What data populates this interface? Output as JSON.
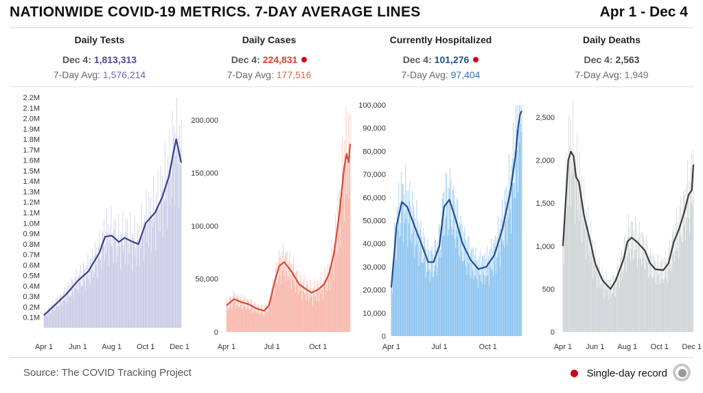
{
  "header": {
    "title": "NATIONWIDE COVID-19 METRICS. 7-DAY AVERAGE LINES",
    "date_range": "Apr 1 - Dec 4"
  },
  "colors": {
    "record_dot": "#d0021b",
    "tests_dark": "#3a3d8f",
    "tests_light": "#c9c9e6",
    "cases_dark": "#d64a33",
    "cases_light": "#f7b2a6",
    "hosp_dark": "#1f4e8f",
    "hosp_light": "#86c1ee",
    "deaths_dark": "#3a3a3a",
    "deaths_light": "#cdd1d3"
  },
  "panels": [
    {
      "title": "Daily Tests",
      "latest_prefix": "Dec 4: ",
      "latest_value": "1,813,313",
      "avg_prefix": "7-Day Avg: ",
      "avg_value": "1,576,214",
      "record": false,
      "value_color": "#4a4a9a",
      "avg_color": "#6b6bb0"
    },
    {
      "title": "Daily Cases",
      "latest_prefix": "Dec 4: ",
      "latest_value": "224,831",
      "avg_prefix": "7-Day Avg: ",
      "avg_value": "177,516",
      "record": true,
      "value_color": "#d8432b",
      "avg_color": "#e0604a"
    },
    {
      "title": "Currently Hospitalized",
      "latest_prefix": "Dec 4: ",
      "latest_value": "101,276",
      "avg_prefix": "7-Day Avg: ",
      "avg_value": "97,404",
      "record": true,
      "value_color": "#1e4f96",
      "avg_color": "#2f6fb8"
    },
    {
      "title": "Daily Deaths",
      "latest_prefix": "Dec 4: ",
      "latest_value": "2,563",
      "avg_prefix": "7-Day Avg: ",
      "avg_value": "1,949",
      "record": false,
      "value_color": "#444444",
      "avg_color": "#777777"
    }
  ],
  "footer": {
    "source": "Source: The COVID Tracking Project",
    "legend_label": "Single-day record"
  },
  "chart_data": [
    {
      "type": "bar",
      "title": "Daily Tests",
      "xlim": [
        0,
        247
      ],
      "ylim": [
        0,
        2200000
      ],
      "yticks": [
        100000,
        200000,
        300000,
        400000,
        500000,
        600000,
        700000,
        800000,
        900000,
        1000000,
        1100000,
        1200000,
        1300000,
        1400000,
        1500000,
        1600000,
        1700000,
        1800000,
        1900000,
        2000000,
        2100000,
        2200000
      ],
      "ytick_labels": [
        "0.1M",
        "0.2M",
        "0.3M",
        "0.4M",
        "0.5M",
        "0.6M",
        "0.7M",
        "0.8M",
        "0.9M",
        "1.0M",
        "1.1M",
        "1.2M",
        "1.3M",
        "1.4M",
        "1.5M",
        "1.6M",
        "1.7M",
        "1.8M",
        "1.9M",
        "2.0M",
        "2.1M",
        "2.2M"
      ],
      "xticks": [
        0,
        61,
        122,
        183,
        244
      ],
      "xtick_labels": [
        "Apr 1",
        "Jun 1",
        "Aug 1",
        "Oct 1",
        "Dec 1"
      ],
      "avg_x": [
        0,
        20,
        40,
        61,
        80,
        100,
        110,
        122,
        135,
        145,
        160,
        170,
        183,
        200,
        213,
        225,
        232,
        238,
        244,
        247
      ],
      "avg_y": [
        120000,
        220000,
        320000,
        450000,
        540000,
        720000,
        870000,
        880000,
        820000,
        860000,
        820000,
        800000,
        1000000,
        1100000,
        1250000,
        1450000,
        1650000,
        1800000,
        1650000,
        1576214
      ]
    },
    {
      "type": "bar",
      "title": "Daily Cases",
      "xlim": [
        0,
        247
      ],
      "ylim": [
        0,
        220000
      ],
      "yticks": [
        0,
        50000,
        100000,
        150000,
        200000
      ],
      "ytick_labels": [
        "0",
        "50,000",
        "100,000",
        "150,000",
        "200,000"
      ],
      "xticks": [
        0,
        91,
        183
      ],
      "xtick_labels": [
        "Apr 1",
        "Jul 1",
        "Oct 1"
      ],
      "avg_x": [
        0,
        15,
        30,
        45,
        60,
        75,
        85,
        95,
        105,
        115,
        130,
        145,
        160,
        170,
        183,
        195,
        205,
        215,
        225,
        235,
        240,
        244,
        247
      ],
      "avg_y": [
        25000,
        31000,
        28000,
        26000,
        22000,
        20000,
        25000,
        45000,
        62000,
        66000,
        57000,
        45000,
        40000,
        37000,
        40000,
        45000,
        55000,
        75000,
        110000,
        155000,
        168000,
        160000,
        177516
      ]
    },
    {
      "type": "bar",
      "title": "Currently Hospitalized",
      "xlim": [
        0,
        247
      ],
      "ylim": [
        0,
        100000
      ],
      "yticks": [
        0,
        10000,
        20000,
        30000,
        40000,
        50000,
        60000,
        70000,
        80000,
        90000,
        100000
      ],
      "ytick_labels": [
        "0",
        "10,000",
        "20,000",
        "30,000",
        "40,000",
        "50,000",
        "60,000",
        "70,000",
        "80,000",
        "90,000",
        "100,000"
      ],
      "xticks": [
        0,
        91,
        183
      ],
      "xtick_labels": [
        "Apr 1",
        "Jul 1",
        "Oct 1"
      ],
      "avg_x": [
        0,
        10,
        20,
        30,
        45,
        60,
        70,
        80,
        91,
        100,
        110,
        120,
        135,
        150,
        165,
        180,
        195,
        210,
        225,
        235,
        240,
        244,
        247
      ],
      "avg_y": [
        21000,
        48000,
        58000,
        56000,
        47000,
        38000,
        32000,
        32000,
        39000,
        56000,
        59000,
        52000,
        40000,
        33000,
        29000,
        30000,
        35000,
        46000,
        62000,
        78000,
        90000,
        96000,
        97404
      ]
    },
    {
      "type": "bar",
      "title": "Daily Deaths",
      "xlim": [
        0,
        247
      ],
      "ylim": [
        0,
        2700
      ],
      "yticks": [
        0,
        500,
        1000,
        1500,
        2000,
        2500
      ],
      "ytick_labels": [
        "0",
        "500",
        "1,000",
        "1,500",
        "2,000",
        "2,500"
      ],
      "xticks": [
        0,
        61,
        122,
        183,
        244
      ],
      "xtick_labels": [
        "Apr 1",
        "Jun 1",
        "Aug 1",
        "Oct 1",
        "Dec 1"
      ],
      "avg_x": [
        0,
        5,
        10,
        15,
        20,
        25,
        30,
        40,
        50,
        61,
        75,
        90,
        100,
        115,
        122,
        130,
        140,
        155,
        165,
        175,
        190,
        200,
        210,
        220,
        230,
        238,
        244,
        247
      ],
      "avg_y": [
        1000,
        1500,
        2000,
        2100,
        2050,
        1800,
        1750,
        1350,
        1100,
        800,
        600,
        500,
        600,
        850,
        1050,
        1100,
        1050,
        950,
        800,
        730,
        720,
        800,
        1050,
        1200,
        1400,
        1600,
        1650,
        1949
      ]
    }
  ]
}
